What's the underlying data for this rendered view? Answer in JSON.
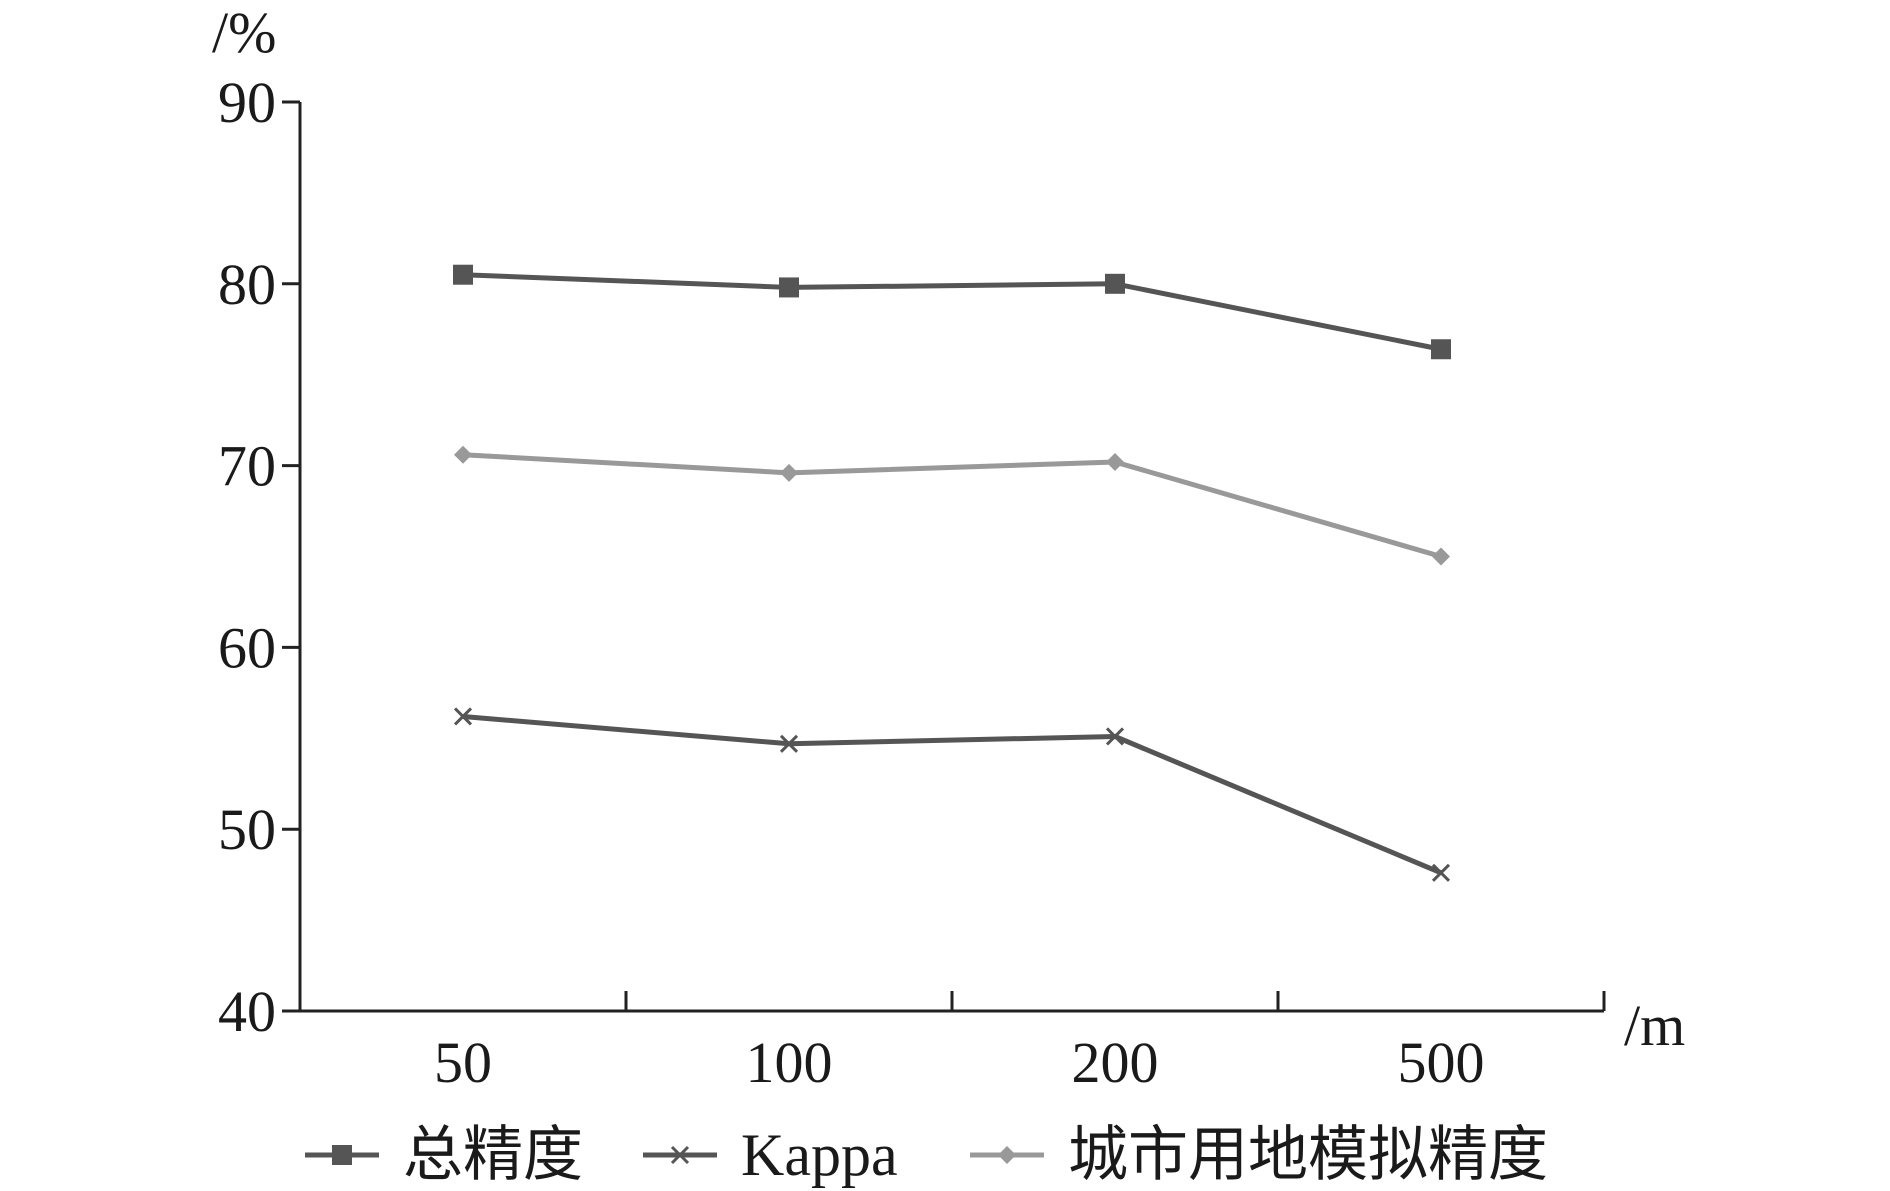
{
  "chart_data": {
    "type": "line",
    "categories": [
      "50",
      "100",
      "200",
      "500"
    ],
    "ylabel": "/%",
    "xlabel": "/m",
    "ylim": [
      40,
      90
    ],
    "yticks": [
      "40",
      "50",
      "60",
      "70",
      "80",
      "90"
    ],
    "grid": false,
    "legend_position": "bottom",
    "series": [
      {
        "name": "总精度",
        "values": [
          80.5,
          79.8,
          80.0,
          76.4
        ],
        "color": "#555555",
        "marker": "square"
      },
      {
        "name": "Kappa",
        "values": [
          56.2,
          54.7,
          55.1,
          47.6
        ],
        "color": "#555555",
        "marker": "x"
      },
      {
        "name": "城市用地模拟精度",
        "values": [
          70.6,
          69.6,
          70.2,
          65.0
        ],
        "color": "#999999",
        "marker": "diamond"
      }
    ]
  }
}
